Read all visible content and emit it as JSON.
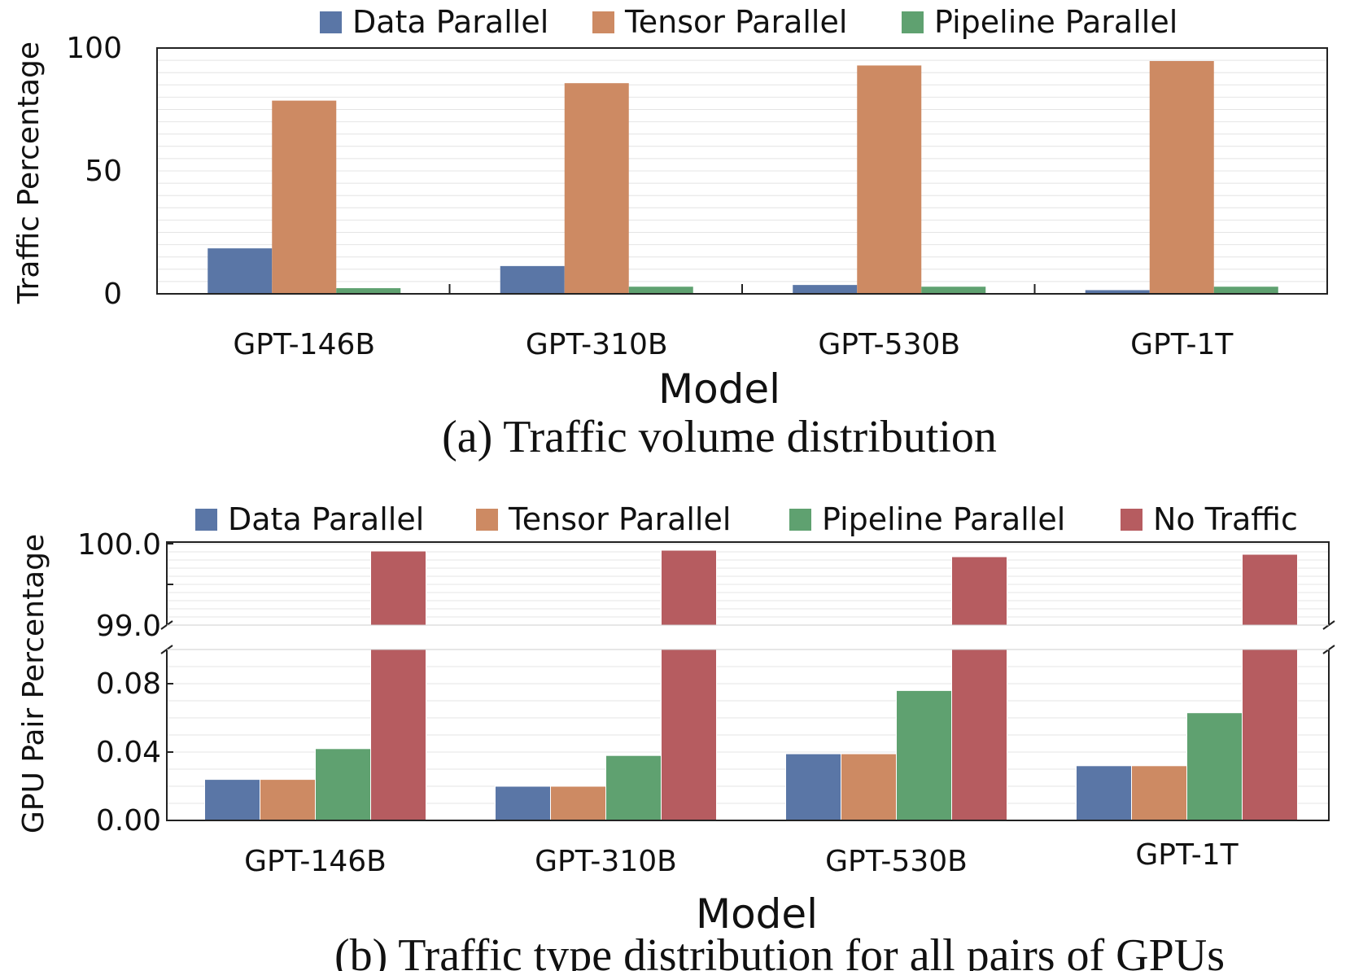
{
  "chart_data": [
    {
      "type": "bar",
      "caption": "(a) Traffic volume distribution",
      "xlabel": "Model",
      "ylabel": "Traffic Percentage",
      "ylim": [
        0,
        100
      ],
      "yticks": [
        "0",
        "50",
        "100"
      ],
      "legend_position": "top",
      "grid": true,
      "categories": [
        "GPT-146B",
        "GPT-310B",
        "GPT-530B",
        "GPT-1T"
      ],
      "series": [
        {
          "name": "Data Parallel",
          "color": "#5a76a6",
          "values": [
            18.5,
            11.3,
            3.6,
            1.5
          ]
        },
        {
          "name": "Tensor Parallel",
          "color": "#cd8a63",
          "values": [
            78.6,
            85.7,
            92.9,
            94.7
          ]
        },
        {
          "name": "Pipeline Parallel",
          "color": "#5fa170",
          "values": [
            2.3,
            2.9,
            2.9,
            2.9
          ]
        }
      ]
    },
    {
      "type": "bar",
      "caption": "(b) Traffic type distribution for all pairs of GPUs",
      "xlabel": "Model",
      "ylabel": "GPU Pair Percentage",
      "broken_axis": true,
      "upper_ylim": [
        99.0,
        100.0
      ],
      "upper_yticks": [
        "99.0",
        "100.0"
      ],
      "lower_ylim": [
        0.0,
        0.1
      ],
      "lower_yticks": [
        "0.00",
        "0.04",
        "0.08"
      ],
      "legend_position": "top",
      "grid": true,
      "categories": [
        "GPT-146B",
        "GPT-310B",
        "GPT-530B",
        "GPT-1T"
      ],
      "series": [
        {
          "name": "Data Parallel",
          "color": "#5a76a6",
          "values": [
            0.024,
            0.02,
            0.039,
            0.032
          ]
        },
        {
          "name": "Tensor Parallel",
          "color": "#cd8a63",
          "values": [
            0.024,
            0.02,
            0.039,
            0.032
          ]
        },
        {
          "name": "Pipeline Parallel",
          "color": "#5fa170",
          "values": [
            0.042,
            0.038,
            0.076,
            0.063
          ]
        },
        {
          "name": "No Traffic",
          "color": "#b65c60",
          "values": [
            99.91,
            99.92,
            99.84,
            99.87
          ]
        }
      ]
    }
  ]
}
